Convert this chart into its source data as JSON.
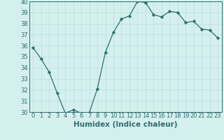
{
  "x": [
    0,
    1,
    2,
    3,
    4,
    5,
    6,
    7,
    8,
    9,
    10,
    11,
    12,
    13,
    14,
    15,
    16,
    17,
    18,
    19,
    20,
    21,
    22,
    23
  ],
  "y": [
    35.8,
    34.8,
    33.6,
    31.7,
    29.9,
    30.2,
    29.9,
    29.95,
    32.1,
    35.4,
    37.2,
    38.4,
    38.7,
    40.0,
    39.9,
    38.8,
    38.6,
    39.1,
    39.0,
    38.1,
    38.2,
    37.5,
    37.4,
    36.7
  ],
  "line_color": "#2d6e6e",
  "marker": "D",
  "markersize": 2.2,
  "linewidth": 0.9,
  "xlabel": "Humidex (Indice chaleur)",
  "ylim": [
    30,
    40
  ],
  "xlim": [
    -0.5,
    23.5
  ],
  "yticks": [
    30,
    31,
    32,
    33,
    34,
    35,
    36,
    37,
    38,
    39,
    40
  ],
  "xticks": [
    0,
    1,
    2,
    3,
    4,
    5,
    6,
    7,
    8,
    9,
    10,
    11,
    12,
    13,
    14,
    15,
    16,
    17,
    18,
    19,
    20,
    21,
    22,
    23
  ],
  "bg_color": "#d4f0ee",
  "grid_color": "#b8dede",
  "text_color": "#2d6e6e",
  "xlabel_fontsize": 7.5,
  "tick_fontsize": 6
}
